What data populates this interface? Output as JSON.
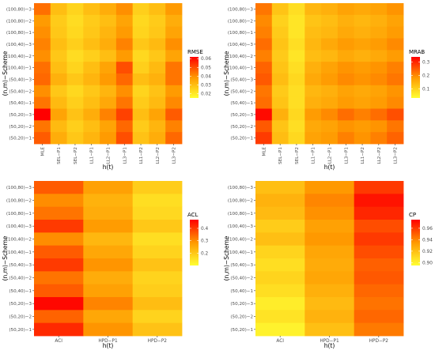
{
  "palette": {
    "low": "#ffff33",
    "mid": "#ff9900",
    "high": "#ff0000",
    "grid_bg": "#ebebeb"
  },
  "rows_top_to_bottom": [
    "(100,80)−3",
    "(100,80)−2",
    "(100,80)−1",
    "(100,40)−3",
    "(100,40)−2",
    "(100,40)−1",
    "(50,40)−3",
    "(50,40)−2",
    "(50,40)−1",
    "(50,20)−3",
    "(50,20)−2",
    "(50,20)−1"
  ],
  "chart_data": [
    {
      "type": "heatmap",
      "xlabel": "h(t)",
      "ylabel": "(n,m)−Scheme",
      "legend_title": "RMSE",
      "legend_ticks": [
        0.02,
        0.03,
        0.04,
        0.05,
        0.06
      ],
      "color_range": [
        0.015,
        0.062
      ],
      "x": [
        "MLE",
        "SEL−P1",
        "SEL−P2",
        "LL1−P1",
        "LL2−P1",
        "LL3−P1",
        "LL1−P2",
        "LL2−P2",
        "LL3−P2"
      ],
      "values": [
        [
          0.045,
          0.03,
          0.025,
          0.03,
          0.034,
          0.04,
          0.026,
          0.03,
          0.038
        ],
        [
          0.038,
          0.027,
          0.023,
          0.027,
          0.03,
          0.036,
          0.024,
          0.027,
          0.034
        ],
        [
          0.04,
          0.028,
          0.024,
          0.028,
          0.032,
          0.038,
          0.025,
          0.028,
          0.036
        ],
        [
          0.042,
          0.03,
          0.026,
          0.03,
          0.034,
          0.042,
          0.028,
          0.031,
          0.04
        ],
        [
          0.04,
          0.028,
          0.023,
          0.026,
          0.03,
          0.038,
          0.024,
          0.028,
          0.036
        ],
        [
          0.045,
          0.03,
          0.025,
          0.03,
          0.036,
          0.05,
          0.026,
          0.031,
          0.044
        ],
        [
          0.046,
          0.033,
          0.028,
          0.032,
          0.038,
          0.046,
          0.03,
          0.033,
          0.044
        ],
        [
          0.04,
          0.028,
          0.024,
          0.028,
          0.032,
          0.04,
          0.025,
          0.029,
          0.038
        ],
        [
          0.044,
          0.031,
          0.026,
          0.03,
          0.035,
          0.044,
          0.027,
          0.031,
          0.041
        ],
        [
          0.062,
          0.036,
          0.029,
          0.034,
          0.042,
          0.052,
          0.03,
          0.036,
          0.048
        ],
        [
          0.044,
          0.031,
          0.026,
          0.03,
          0.036,
          0.046,
          0.027,
          0.032,
          0.042
        ],
        [
          0.048,
          0.034,
          0.028,
          0.032,
          0.038,
          0.05,
          0.029,
          0.034,
          0.046
        ]
      ]
    },
    {
      "type": "heatmap",
      "xlabel": "h(t)",
      "ylabel": "(n,m)−Scheme",
      "legend_title": "MRAB",
      "legend_ticks": [
        0.1,
        0.2,
        0.3
      ],
      "color_range": [
        0.03,
        0.34
      ],
      "x": [
        "MLE",
        "SEL−P1",
        "SEL−P2",
        "LL1−P1",
        "LL2−P1",
        "LL3−P1",
        "LL1−P2",
        "LL2−P2",
        "LL3−P2"
      ],
      "values": [
        [
          0.22,
          0.12,
          0.08,
          0.14,
          0.15,
          0.17,
          0.16,
          0.17,
          0.19
        ],
        [
          0.2,
          0.1,
          0.07,
          0.12,
          0.13,
          0.15,
          0.14,
          0.15,
          0.17
        ],
        [
          0.21,
          0.11,
          0.07,
          0.13,
          0.14,
          0.16,
          0.15,
          0.16,
          0.18
        ],
        [
          0.23,
          0.12,
          0.08,
          0.14,
          0.16,
          0.18,
          0.17,
          0.18,
          0.2
        ],
        [
          0.21,
          0.11,
          0.07,
          0.13,
          0.14,
          0.16,
          0.15,
          0.16,
          0.18
        ],
        [
          0.24,
          0.12,
          0.08,
          0.15,
          0.17,
          0.19,
          0.18,
          0.19,
          0.21
        ],
        [
          0.25,
          0.13,
          0.09,
          0.16,
          0.18,
          0.2,
          0.19,
          0.2,
          0.22
        ],
        [
          0.22,
          0.11,
          0.08,
          0.14,
          0.15,
          0.17,
          0.16,
          0.17,
          0.19
        ],
        [
          0.23,
          0.12,
          0.08,
          0.15,
          0.16,
          0.18,
          0.17,
          0.18,
          0.2
        ],
        [
          0.33,
          0.15,
          0.09,
          0.18,
          0.2,
          0.23,
          0.21,
          0.23,
          0.26
        ],
        [
          0.25,
          0.12,
          0.08,
          0.16,
          0.17,
          0.19,
          0.18,
          0.19,
          0.22
        ],
        [
          0.28,
          0.13,
          0.09,
          0.17,
          0.18,
          0.21,
          0.19,
          0.21,
          0.24
        ]
      ]
    },
    {
      "type": "heatmap",
      "xlabel": "h(t)",
      "ylabel": "(n,m)−Scheme",
      "legend_title": "ACL",
      "legend_ticks": [
        0.2,
        0.3,
        0.4
      ],
      "color_range": [
        0.1,
        0.47
      ],
      "x": [
        "ACI",
        "HPD−P1",
        "HPD−P2"
      ],
      "values": [
        [
          0.36,
          0.27,
          0.19
        ],
        [
          0.3,
          0.24,
          0.16
        ],
        [
          0.33,
          0.25,
          0.17
        ],
        [
          0.4,
          0.28,
          0.2
        ],
        [
          0.3,
          0.23,
          0.16
        ],
        [
          0.36,
          0.26,
          0.18
        ],
        [
          0.4,
          0.29,
          0.21
        ],
        [
          0.33,
          0.25,
          0.18
        ],
        [
          0.36,
          0.27,
          0.19
        ],
        [
          0.46,
          0.31,
          0.22
        ],
        [
          0.35,
          0.26,
          0.18
        ],
        [
          0.42,
          0.29,
          0.21
        ]
      ]
    },
    {
      "type": "heatmap",
      "xlabel": "h(t)",
      "ylabel": "(n,m)−Scheme",
      "legend_title": "CP",
      "legend_ticks": [
        0.9,
        0.92,
        0.94,
        0.96
      ],
      "legend_tick_labels": [
        "0.90",
        "0.92",
        "0.94",
        "0.96"
      ],
      "color_range": [
        0.895,
        0.975
      ],
      "x": [
        "ACI",
        "HPD−P1",
        "HPD−P2"
      ],
      "values": [
        [
          0.92,
          0.935,
          0.96
        ],
        [
          0.925,
          0.94,
          0.97
        ],
        [
          0.922,
          0.937,
          0.965
        ],
        [
          0.915,
          0.932,
          0.955
        ],
        [
          0.92,
          0.935,
          0.96
        ],
        [
          0.912,
          0.93,
          0.955
        ],
        [
          0.908,
          0.928,
          0.95
        ],
        [
          0.912,
          0.93,
          0.952
        ],
        [
          0.908,
          0.926,
          0.948
        ],
        [
          0.902,
          0.922,
          0.945
        ],
        [
          0.906,
          0.925,
          0.948
        ],
        [
          0.9,
          0.92,
          0.943
        ]
      ]
    }
  ]
}
